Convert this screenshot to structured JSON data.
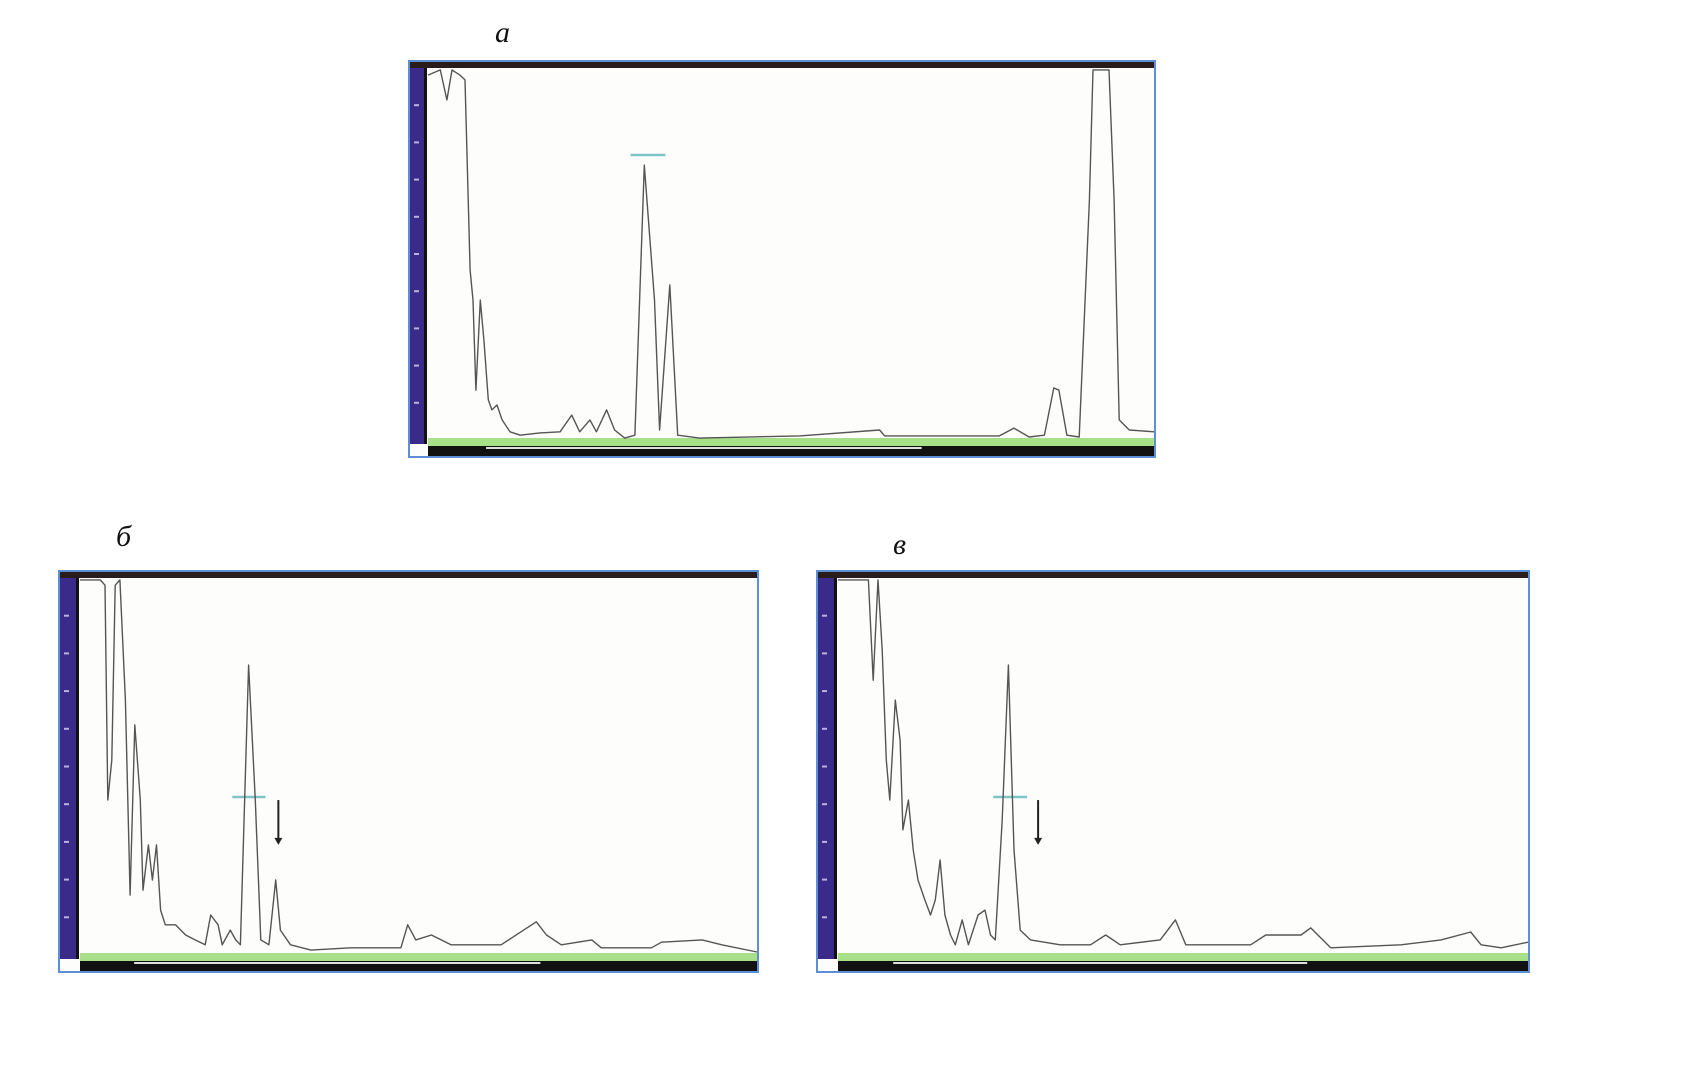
{
  "panels": [
    {
      "label": "а",
      "chart_data": {
        "type": "line",
        "xlim": [
          0,
          100
        ],
        "ylim": [
          0,
          100
        ],
        "grid": false,
        "trace": [
          [
            0,
            98.1
          ],
          [
            1.7,
            99.5
          ],
          [
            2.6,
            91.4
          ],
          [
            3.3,
            99.5
          ],
          [
            4.4,
            98.1
          ],
          [
            5.1,
            96.8
          ],
          [
            5.8,
            45.7
          ],
          [
            6.2,
            37.6
          ],
          [
            6.6,
            13.4
          ],
          [
            7.2,
            37.6
          ],
          [
            7.7,
            26.9
          ],
          [
            8.3,
            10.8
          ],
          [
            8.8,
            8.1
          ],
          [
            9.5,
            9.4
          ],
          [
            10.2,
            5.4
          ],
          [
            11.3,
            2.2
          ],
          [
            12.7,
            1.3
          ],
          [
            15.4,
            1.9
          ],
          [
            18.2,
            2.2
          ],
          [
            19.8,
            6.7
          ],
          [
            20.9,
            2.2
          ],
          [
            22.3,
            5.4
          ],
          [
            23.2,
            2.2
          ],
          [
            24.6,
            8.1
          ],
          [
            25.7,
            2.7
          ],
          [
            27.1,
            0.5
          ],
          [
            28.5,
            1.3
          ],
          [
            29.8,
            73.9
          ],
          [
            31.2,
            37.6
          ],
          [
            31.9,
            2.7
          ],
          [
            33.3,
            41.7
          ],
          [
            34.4,
            1.3
          ],
          [
            37.4,
            0.5
          ],
          [
            51.2,
            1.1
          ],
          [
            62.2,
            2.7
          ],
          [
            62.9,
            1.1
          ],
          [
            78.7,
            1.1
          ],
          [
            80.7,
            3.2
          ],
          [
            82.8,
            0.8
          ],
          [
            84.9,
            1.3
          ],
          [
            86.2,
            14.0
          ],
          [
            86.9,
            13.4
          ],
          [
            88.0,
            1.3
          ],
          [
            89.7,
            0.8
          ],
          [
            91.1,
            64.5
          ],
          [
            91.6,
            99.5
          ],
          [
            93.8,
            99.5
          ],
          [
            94.5,
            64.5
          ],
          [
            95.2,
            5.4
          ],
          [
            96.6,
            2.7
          ],
          [
            100,
            2.2
          ]
        ],
        "gate": {
          "x": [
            27.9,
            32.7
          ],
          "y": 76.6
        },
        "arrow": null
      }
    },
    {
      "label": "б",
      "chart_data": {
        "type": "line",
        "xlim": [
          0,
          100
        ],
        "ylim": [
          0,
          100
        ],
        "grid": false,
        "trace": [
          [
            0,
            99.5
          ],
          [
            3.0,
            99.5
          ],
          [
            3.7,
            98.1
          ],
          [
            4.1,
            41.1
          ],
          [
            4.7,
            51.7
          ],
          [
            5.2,
            98.1
          ],
          [
            5.9,
            99.5
          ],
          [
            6.7,
            67.6
          ],
          [
            7.4,
            15.9
          ],
          [
            8.1,
            61.0
          ],
          [
            8.9,
            41.1
          ],
          [
            9.3,
            17.2
          ],
          [
            10.1,
            29.2
          ],
          [
            10.7,
            19.9
          ],
          [
            11.3,
            29.2
          ],
          [
            11.9,
            11.9
          ],
          [
            12.6,
            8.0
          ],
          [
            14.1,
            8.0
          ],
          [
            15.6,
            5.3
          ],
          [
            17.0,
            4.0
          ],
          [
            18.5,
            2.7
          ],
          [
            19.3,
            10.6
          ],
          [
            20.4,
            8.0
          ],
          [
            21.0,
            2.7
          ],
          [
            22.2,
            6.6
          ],
          [
            23.0,
            4.0
          ],
          [
            23.7,
            2.7
          ],
          [
            24.9,
            76.9
          ],
          [
            25.9,
            41.1
          ],
          [
            26.7,
            4.0
          ],
          [
            27.9,
            2.7
          ],
          [
            28.9,
            19.9
          ],
          [
            29.6,
            6.6
          ],
          [
            31.1,
            2.7
          ],
          [
            34.1,
            1.3
          ],
          [
            40.0,
            1.9
          ],
          [
            47.4,
            1.9
          ],
          [
            48.4,
            8.0
          ],
          [
            49.6,
            4.0
          ],
          [
            51.9,
            5.3
          ],
          [
            54.8,
            2.7
          ],
          [
            62.2,
            2.7
          ],
          [
            67.4,
            8.8
          ],
          [
            68.9,
            5.3
          ],
          [
            71.1,
            2.7
          ],
          [
            75.6,
            4.0
          ],
          [
            77.0,
            1.9
          ],
          [
            84.4,
            1.9
          ],
          [
            85.9,
            3.4
          ],
          [
            91.9,
            4.0
          ],
          [
            94.8,
            2.7
          ],
          [
            100,
            0.8
          ]
        ],
        "gate": {
          "x": [
            22.5,
            27.4
          ],
          "y": 41.9
        },
        "arrow": {
          "x": 29.3,
          "y_from": 41.1,
          "y_to": 29.2
        }
      }
    },
    {
      "label": "в",
      "chart_data": {
        "type": "line",
        "xlim": [
          0,
          100
        ],
        "ylim": [
          0,
          100
        ],
        "grid": false,
        "trace": [
          [
            0,
            99.5
          ],
          [
            4.4,
            99.5
          ],
          [
            5.1,
            72.9
          ],
          [
            5.8,
            99.5
          ],
          [
            6.4,
            80.9
          ],
          [
            7.0,
            51.7
          ],
          [
            7.5,
            41.1
          ],
          [
            8.3,
            67.6
          ],
          [
            9.0,
            57.0
          ],
          [
            9.4,
            33.2
          ],
          [
            10.2,
            41.1
          ],
          [
            10.9,
            27.9
          ],
          [
            11.6,
            19.9
          ],
          [
            12.6,
            14.6
          ],
          [
            13.4,
            10.6
          ],
          [
            14.1,
            14.6
          ],
          [
            14.8,
            25.2
          ],
          [
            15.5,
            10.6
          ],
          [
            16.3,
            5.3
          ],
          [
            17.0,
            2.7
          ],
          [
            18.0,
            9.3
          ],
          [
            18.9,
            2.7
          ],
          [
            20.3,
            10.6
          ],
          [
            21.3,
            11.9
          ],
          [
            22.1,
            5.3
          ],
          [
            22.8,
            4.0
          ],
          [
            23.8,
            35.8
          ],
          [
            24.7,
            76.9
          ],
          [
            25.5,
            27.9
          ],
          [
            26.4,
            6.6
          ],
          [
            27.9,
            4.0
          ],
          [
            32.2,
            2.7
          ],
          [
            36.6,
            2.7
          ],
          [
            38.8,
            5.3
          ],
          [
            40.9,
            2.7
          ],
          [
            46.7,
            4.0
          ],
          [
            48.9,
            9.3
          ],
          [
            50.4,
            2.7
          ],
          [
            59.8,
            2.7
          ],
          [
            62.0,
            5.3
          ],
          [
            67.1,
            5.3
          ],
          [
            68.5,
            7.2
          ],
          [
            71.4,
            1.9
          ],
          [
            81.6,
            2.7
          ],
          [
            87.4,
            4.0
          ],
          [
            91.7,
            6.1
          ],
          [
            93.2,
            2.7
          ],
          [
            96.1,
            1.9
          ],
          [
            100,
            3.4
          ]
        ],
        "gate": {
          "x": [
            22.5,
            27.4
          ],
          "y": 41.9
        },
        "arrow": {
          "x": 29.0,
          "y_from": 41.1,
          "y_to": 29.2
        }
      }
    }
  ],
  "colors": {
    "frame": "#5b8fd6",
    "top_bar": "#2a1c1c",
    "scale_bar": "#3a2a8a",
    "baseline_strip": "#a8e08a",
    "bottom_bar": "#111111",
    "trace": "#555555",
    "gate": "#7fc4c8",
    "arrow": "#222222"
  }
}
